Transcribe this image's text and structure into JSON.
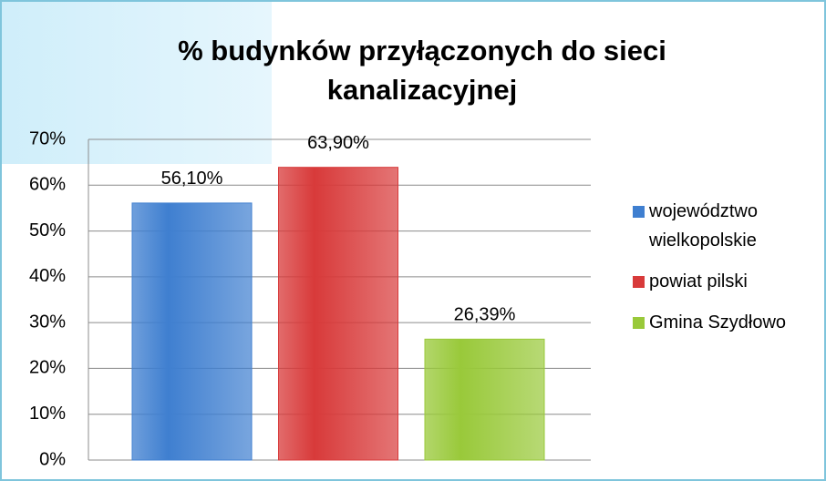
{
  "chart_data": {
    "type": "bar",
    "title": "% budynków przyłączonych do sieci kanalizacyjnej",
    "categories": [
      null
    ],
    "series": [
      {
        "name": "województwo wielkopolskie",
        "color": "#3f7fd0",
        "values": [
          56.1
        ],
        "value_labels": [
          "56,10%"
        ]
      },
      {
        "name": "powiat pilski",
        "color": "#d83a3a",
        "values": [
          63.9
        ],
        "value_labels": [
          "63,90%"
        ]
      },
      {
        "name": "Gmina Szydłowo",
        "color": "#99c93a",
        "values": [
          26.39
        ],
        "value_labels": [
          "26,39%"
        ]
      }
    ],
    "ylim": [
      0,
      70
    ],
    "yticks": [
      {
        "value": 0,
        "label": "0%"
      },
      {
        "value": 10,
        "label": "10%"
      },
      {
        "value": 20,
        "label": "20%"
      },
      {
        "value": 30,
        "label": "30%"
      },
      {
        "value": 40,
        "label": "40%"
      },
      {
        "value": 50,
        "label": "50%"
      },
      {
        "value": 60,
        "label": "60%"
      },
      {
        "value": 70,
        "label": "70%"
      }
    ],
    "grid": true,
    "legend": "right"
  }
}
